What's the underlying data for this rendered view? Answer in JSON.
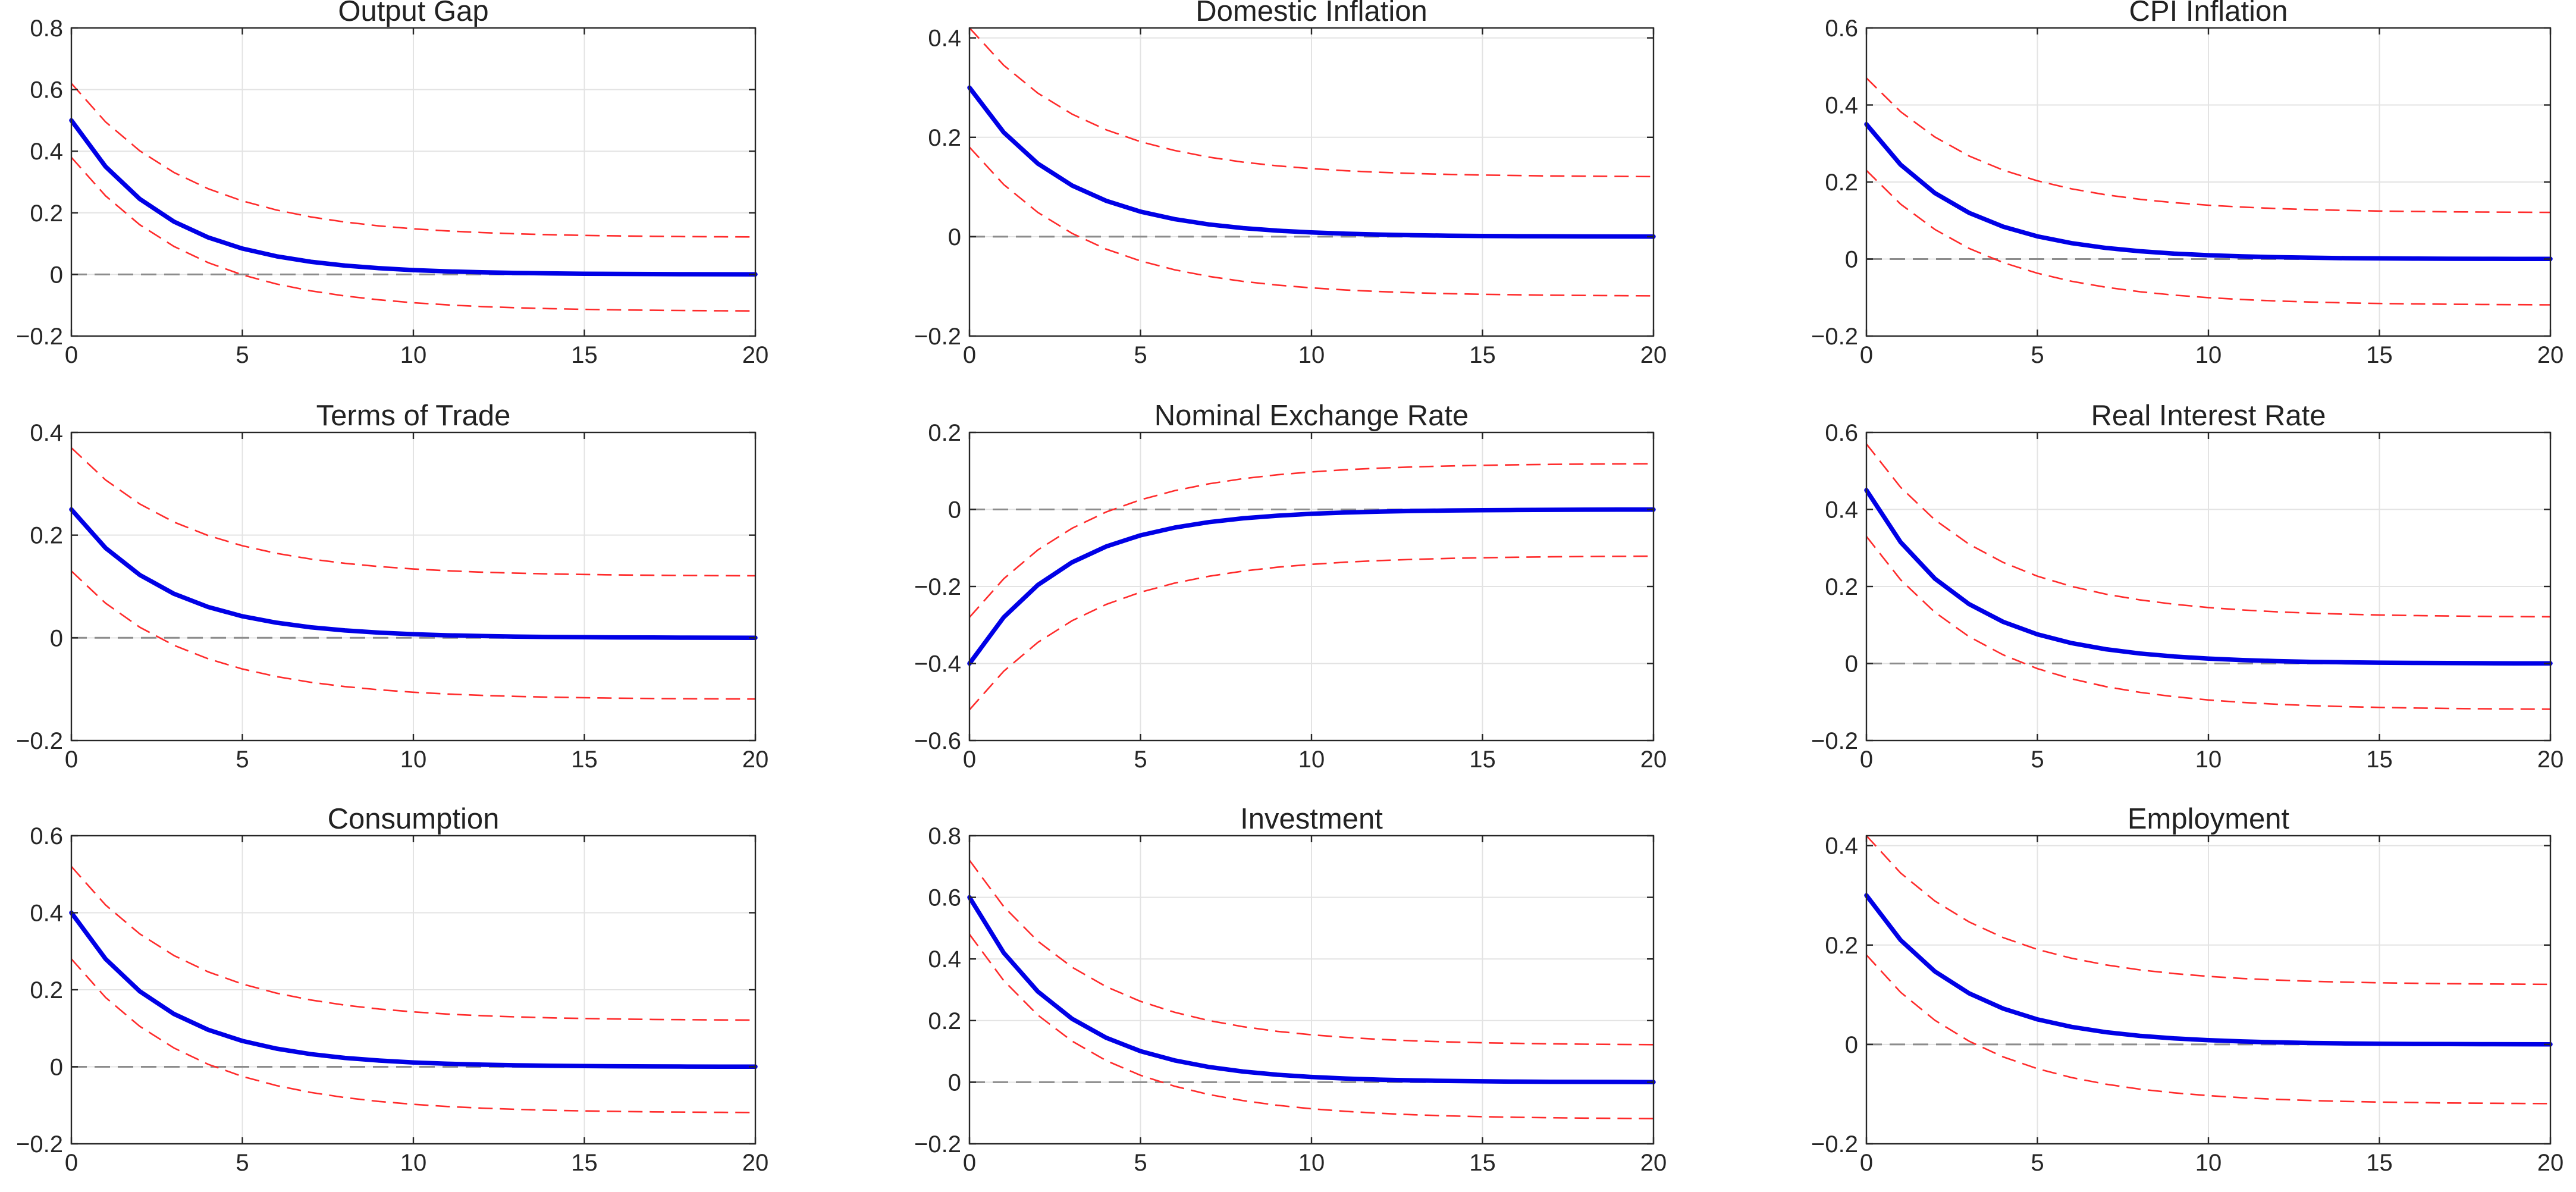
{
  "colors": {
    "irf_line": "#0000e6",
    "band_line": "#ff2b2b",
    "zero_line": "#8c8c8c",
    "grid": "#e3e3e3",
    "axes": "#262626"
  },
  "chart_data": [
    {
      "type": "line",
      "title": "Output Gap",
      "x": [
        0,
        1,
        2,
        3,
        4,
        5,
        6,
        7,
        8,
        9,
        10,
        11,
        12,
        13,
        14,
        15,
        16,
        17,
        18,
        19,
        20
      ],
      "xlim": [
        0,
        20
      ],
      "ylim": [
        -0.2,
        0.8
      ],
      "xticks": [
        0,
        5,
        10,
        15,
        20
      ],
      "yticks": [
        -0.2,
        0,
        0.2,
        0.4,
        0.6,
        0.8
      ],
      "xtick_labels": [
        "0",
        "5",
        "10",
        "15",
        "20"
      ],
      "ytick_labels": [
        "−0.2",
        "0",
        "0.2",
        "0.4",
        "0.6",
        "0.8"
      ],
      "grid": true,
      "series": [
        {
          "name": "Impulse response",
          "style": "solid-blue",
          "impact": 0.5,
          "decay": 0.7
        },
        {
          "name": "Upper band",
          "style": "dashed-red",
          "impact": 0.62,
          "decay": 0.75,
          "long_run": 0.12
        },
        {
          "name": "Lower band",
          "style": "dashed-red",
          "impact": 0.38,
          "decay": 0.75,
          "long_run": -0.12
        },
        {
          "name": "Zero line",
          "style": "dashed-gray",
          "impact": 0,
          "decay": 1,
          "long_run": 0
        }
      ]
    },
    {
      "type": "line",
      "title": "Domestic Inflation",
      "x": [
        0,
        1,
        2,
        3,
        4,
        5,
        6,
        7,
        8,
        9,
        10,
        11,
        12,
        13,
        14,
        15,
        16,
        17,
        18,
        19,
        20
      ],
      "xlim": [
        0,
        20
      ],
      "ylim": [
        -0.2,
        0.42
      ],
      "xticks": [
        0,
        5,
        10,
        15,
        20
      ],
      "yticks": [
        -0.2,
        0,
        0.2,
        0.4
      ],
      "xtick_labels": [
        "0",
        "5",
        "10",
        "15",
        "20"
      ],
      "ytick_labels": [
        "−0.2",
        "0",
        "0.2",
        "0.4"
      ],
      "grid": true,
      "series": [
        {
          "name": "Impulse response",
          "style": "solid-blue",
          "impact": 0.3,
          "decay": 0.7
        },
        {
          "name": "Upper band",
          "style": "dashed-red",
          "impact": 0.42,
          "decay": 0.75,
          "long_run": 0.12
        },
        {
          "name": "Lower band",
          "style": "dashed-red",
          "impact": 0.18,
          "decay": 0.75,
          "long_run": -0.12
        },
        {
          "name": "Zero line",
          "style": "dashed-gray",
          "impact": 0,
          "decay": 1,
          "long_run": 0
        }
      ]
    },
    {
      "type": "line",
      "title": "CPI Inflation",
      "x": [
        0,
        1,
        2,
        3,
        4,
        5,
        6,
        7,
        8,
        9,
        10,
        11,
        12,
        13,
        14,
        15,
        16,
        17,
        18,
        19,
        20
      ],
      "xlim": [
        0,
        20
      ],
      "ylim": [
        -0.2,
        0.6
      ],
      "xticks": [
        0,
        5,
        10,
        15,
        20
      ],
      "yticks": [
        -0.2,
        0,
        0.2,
        0.4,
        0.6
      ],
      "xtick_labels": [
        "0",
        "5",
        "10",
        "15",
        "20"
      ],
      "ytick_labels": [
        "−0.2",
        "0",
        "0.2",
        "0.4",
        "0.6"
      ],
      "grid": true,
      "series": [
        {
          "name": "Impulse response",
          "style": "solid-blue",
          "impact": 0.35,
          "decay": 0.7
        },
        {
          "name": "Upper band",
          "style": "dashed-red",
          "impact": 0.47,
          "decay": 0.75,
          "long_run": 0.12
        },
        {
          "name": "Lower band",
          "style": "dashed-red",
          "impact": 0.23,
          "decay": 0.75,
          "long_run": -0.12
        },
        {
          "name": "Zero line",
          "style": "dashed-gray",
          "impact": 0,
          "decay": 1,
          "long_run": 0
        }
      ]
    },
    {
      "type": "line",
      "title": "Terms of Trade",
      "x": [
        0,
        1,
        2,
        3,
        4,
        5,
        6,
        7,
        8,
        9,
        10,
        11,
        12,
        13,
        14,
        15,
        16,
        17,
        18,
        19,
        20
      ],
      "xlim": [
        0,
        20
      ],
      "ylim": [
        -0.2,
        0.4
      ],
      "xticks": [
        0,
        5,
        10,
        15,
        20
      ],
      "yticks": [
        -0.2,
        0,
        0.2,
        0.4
      ],
      "xtick_labels": [
        "0",
        "5",
        "10",
        "15",
        "20"
      ],
      "ytick_labels": [
        "−0.2",
        "0",
        "0.2",
        "0.4"
      ],
      "grid": true,
      "series": [
        {
          "name": "Impulse response",
          "style": "solid-blue",
          "impact": 0.25,
          "decay": 0.7
        },
        {
          "name": "Upper band",
          "style": "dashed-red",
          "impact": 0.37,
          "decay": 0.75,
          "long_run": 0.12
        },
        {
          "name": "Lower band",
          "style": "dashed-red",
          "impact": 0.13,
          "decay": 0.75,
          "long_run": -0.12
        },
        {
          "name": "Zero line",
          "style": "dashed-gray",
          "impact": 0,
          "decay": 1,
          "long_run": 0
        }
      ]
    },
    {
      "type": "line",
      "title": "Nominal Exchange Rate",
      "x": [
        0,
        1,
        2,
        3,
        4,
        5,
        6,
        7,
        8,
        9,
        10,
        11,
        12,
        13,
        14,
        15,
        16,
        17,
        18,
        19,
        20
      ],
      "xlim": [
        0,
        20
      ],
      "ylim": [
        -0.6,
        0.2
      ],
      "xticks": [
        0,
        5,
        10,
        15,
        20
      ],
      "yticks": [
        -0.6,
        -0.4,
        -0.2,
        0,
        0.2
      ],
      "xtick_labels": [
        "0",
        "5",
        "10",
        "15",
        "20"
      ],
      "ytick_labels": [
        "−0.6",
        "−0.4",
        "−0.2",
        "0",
        "0.2"
      ],
      "grid": true,
      "series": [
        {
          "name": "Impulse response",
          "style": "solid-blue",
          "impact": -0.4,
          "decay": 0.7
        },
        {
          "name": "Upper band",
          "style": "dashed-red",
          "impact": -0.28,
          "decay": 0.75,
          "long_run": 0.12
        },
        {
          "name": "Lower band",
          "style": "dashed-red",
          "impact": -0.52,
          "decay": 0.75,
          "long_run": -0.12
        },
        {
          "name": "Zero line",
          "style": "dashed-gray",
          "impact": 0,
          "decay": 1,
          "long_run": 0
        }
      ]
    },
    {
      "type": "line",
      "title": "Real Interest Rate",
      "x": [
        0,
        1,
        2,
        3,
        4,
        5,
        6,
        7,
        8,
        9,
        10,
        11,
        12,
        13,
        14,
        15,
        16,
        17,
        18,
        19,
        20
      ],
      "xlim": [
        0,
        20
      ],
      "ylim": [
        -0.2,
        0.6
      ],
      "xticks": [
        0,
        5,
        10,
        15,
        20
      ],
      "yticks": [
        -0.2,
        0,
        0.2,
        0.4,
        0.6
      ],
      "xtick_labels": [
        "0",
        "5",
        "10",
        "15",
        "20"
      ],
      "ytick_labels": [
        "−0.2",
        "0",
        "0.2",
        "0.4",
        "0.6"
      ],
      "grid": true,
      "series": [
        {
          "name": "Impulse response",
          "style": "solid-blue",
          "impact": 0.45,
          "decay": 0.7
        },
        {
          "name": "Upper band",
          "style": "dashed-red",
          "impact": 0.57,
          "decay": 0.75,
          "long_run": 0.12
        },
        {
          "name": "Lower band",
          "style": "dashed-red",
          "impact": 0.33,
          "decay": 0.75,
          "long_run": -0.12
        },
        {
          "name": "Zero line",
          "style": "dashed-gray",
          "impact": 0,
          "decay": 1,
          "long_run": 0
        }
      ]
    },
    {
      "type": "line",
      "title": "Consumption",
      "x": [
        0,
        1,
        2,
        3,
        4,
        5,
        6,
        7,
        8,
        9,
        10,
        11,
        12,
        13,
        14,
        15,
        16,
        17,
        18,
        19,
        20
      ],
      "xlim": [
        0,
        20
      ],
      "ylim": [
        -0.2,
        0.6
      ],
      "xticks": [
        0,
        5,
        10,
        15,
        20
      ],
      "yticks": [
        -0.2,
        0,
        0.2,
        0.4,
        0.6
      ],
      "xtick_labels": [
        "0",
        "5",
        "10",
        "15",
        "20"
      ],
      "ytick_labels": [
        "−0.2",
        "0",
        "0.2",
        "0.4",
        "0.6"
      ],
      "grid": true,
      "series": [
        {
          "name": "Impulse response",
          "style": "solid-blue",
          "impact": 0.4,
          "decay": 0.7
        },
        {
          "name": "Upper band",
          "style": "dashed-red",
          "impact": 0.52,
          "decay": 0.75,
          "long_run": 0.12
        },
        {
          "name": "Lower band",
          "style": "dashed-red",
          "impact": 0.28,
          "decay": 0.75,
          "long_run": -0.12
        },
        {
          "name": "Zero line",
          "style": "dashed-gray",
          "impact": 0,
          "decay": 1,
          "long_run": 0
        }
      ]
    },
    {
      "type": "line",
      "title": "Investment",
      "x": [
        0,
        1,
        2,
        3,
        4,
        5,
        6,
        7,
        8,
        9,
        10,
        11,
        12,
        13,
        14,
        15,
        16,
        17,
        18,
        19,
        20
      ],
      "xlim": [
        0,
        20
      ],
      "ylim": [
        -0.2,
        0.8
      ],
      "xticks": [
        0,
        5,
        10,
        15,
        20
      ],
      "yticks": [
        -0.2,
        0,
        0.2,
        0.4,
        0.6,
        0.8
      ],
      "xtick_labels": [
        "0",
        "5",
        "10",
        "15",
        "20"
      ],
      "ytick_labels": [
        "−0.2",
        "0",
        "0.2",
        "0.4",
        "0.6",
        "0.8"
      ],
      "grid": true,
      "series": [
        {
          "name": "Impulse response",
          "style": "solid-blue",
          "impact": 0.6,
          "decay": 0.7
        },
        {
          "name": "Upper band",
          "style": "dashed-red",
          "impact": 0.72,
          "decay": 0.75,
          "long_run": 0.12
        },
        {
          "name": "Lower band",
          "style": "dashed-red",
          "impact": 0.48,
          "decay": 0.75,
          "long_run": -0.12
        },
        {
          "name": "Zero line",
          "style": "dashed-gray",
          "impact": 0,
          "decay": 1,
          "long_run": 0
        }
      ]
    },
    {
      "type": "line",
      "title": "Employment",
      "x": [
        0,
        1,
        2,
        3,
        4,
        5,
        6,
        7,
        8,
        9,
        10,
        11,
        12,
        13,
        14,
        15,
        16,
        17,
        18,
        19,
        20
      ],
      "xlim": [
        0,
        20
      ],
      "ylim": [
        -0.2,
        0.42
      ],
      "xticks": [
        0,
        5,
        10,
        15,
        20
      ],
      "yticks": [
        -0.2,
        0,
        0.2,
        0.4
      ],
      "xtick_labels": [
        "0",
        "5",
        "10",
        "15",
        "20"
      ],
      "ytick_labels": [
        "−0.2",
        "0",
        "0.2",
        "0.4"
      ],
      "grid": true,
      "series": [
        {
          "name": "Impulse response",
          "style": "solid-blue",
          "impact": 0.3,
          "decay": 0.7
        },
        {
          "name": "Upper band",
          "style": "dashed-red",
          "impact": 0.42,
          "decay": 0.75,
          "long_run": 0.12
        },
        {
          "name": "Lower band",
          "style": "dashed-red",
          "impact": 0.18,
          "decay": 0.75,
          "long_run": -0.12
        },
        {
          "name": "Zero line",
          "style": "dashed-gray",
          "impact": 0,
          "decay": 1,
          "long_run": 0
        }
      ]
    }
  ]
}
